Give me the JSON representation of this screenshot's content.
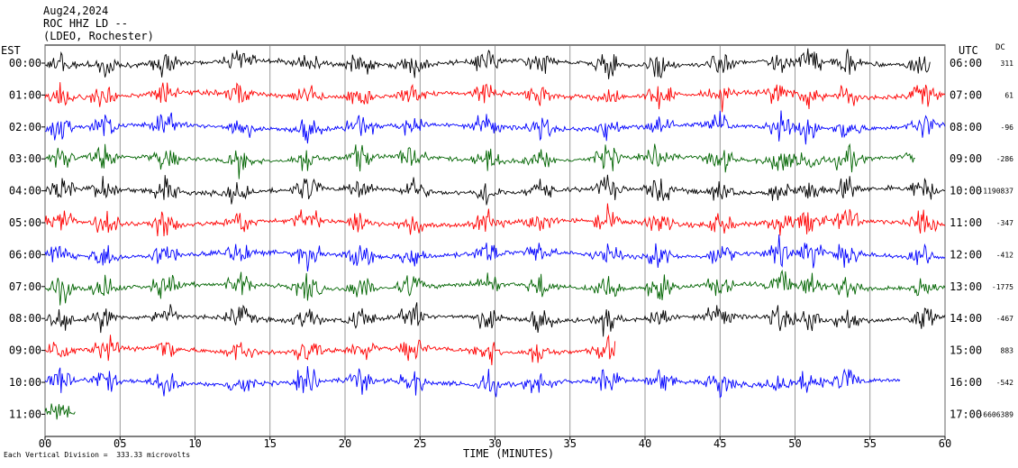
{
  "header": {
    "date": "Aug24,2024",
    "station": "ROC HHZ LD --",
    "network": "(LDEO, Rochester)"
  },
  "labels": {
    "left_zone": "EST",
    "right_zone": "UTC",
    "dc_header": "DC",
    "footer": "Each Vertical Division =  333.33 microvolts",
    "xlabel": "TIME (MINUTES)"
  },
  "colors": {
    "black": "#000000",
    "red": "#ff0000",
    "blue": "#0000ff",
    "green": "#006400"
  },
  "chart_data": {
    "type": "line",
    "title": "",
    "xlabel": "TIME (MINUTES)",
    "ylabel": "",
    "xlim": [
      0,
      60
    ],
    "x_ticks": [
      "00",
      "05",
      "10",
      "15",
      "20",
      "25",
      "30",
      "35",
      "40",
      "45",
      "50",
      "55",
      "60"
    ],
    "grid": true,
    "vertical_division_microvolts": 333.33,
    "rows": [
      {
        "est": "00:00",
        "utc": "06:00",
        "dc": "311",
        "color": "black",
        "start_min": 0,
        "end_min": 59
      },
      {
        "est": "01:00",
        "utc": "07:00",
        "dc": "61",
        "color": "red",
        "start_min": 0,
        "end_min": 60
      },
      {
        "est": "02:00",
        "utc": "08:00",
        "dc": "-96",
        "color": "blue",
        "start_min": 0,
        "end_min": 60
      },
      {
        "est": "03:00",
        "utc": "09:00",
        "dc": "-286",
        "color": "green",
        "start_min": 0,
        "end_min": 58
      },
      {
        "est": "04:00",
        "utc": "10:00",
        "dc": "-1190837",
        "color": "black",
        "start_min": 0,
        "end_min": 60
      },
      {
        "est": "05:00",
        "utc": "11:00",
        "dc": "-347",
        "color": "red",
        "start_min": 0,
        "end_min": 60
      },
      {
        "est": "06:00",
        "utc": "12:00",
        "dc": "-412",
        "color": "blue",
        "start_min": 0,
        "end_min": 60
      },
      {
        "est": "07:00",
        "utc": "13:00",
        "dc": "-1775",
        "color": "green",
        "start_min": 0,
        "end_min": 60
      },
      {
        "est": "08:00",
        "utc": "14:00",
        "dc": "-467",
        "color": "black",
        "start_min": 0,
        "end_min": 60
      },
      {
        "est": "09:00",
        "utc": "15:00",
        "dc": "883",
        "color": "red",
        "start_min": 0,
        "end_min": 38
      },
      {
        "est": "10:00",
        "utc": "16:00",
        "dc": "-542",
        "color": "blue",
        "start_min": 0,
        "end_min": 57
      },
      {
        "est": "11:00",
        "utc": "17:00",
        "dc": "-6606389",
        "color": "green",
        "start_min": 0,
        "end_min": 2
      }
    ]
  }
}
